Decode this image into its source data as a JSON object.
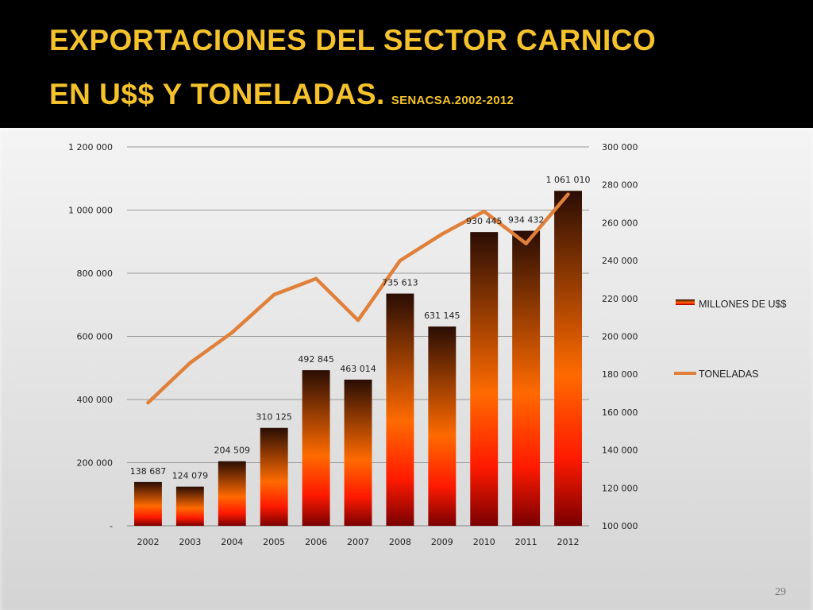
{
  "title": {
    "line1": "EXPORTACIONES DEL SECTOR CARNICO",
    "line2": "EN U$$ Y TONELADAS.",
    "source": "SENACSA.2002-2012"
  },
  "page_number": "29",
  "colors": {
    "title": "#f5c22c",
    "line": "#e0803a",
    "bar_top": "#2a0d04",
    "bar_mid": "#ff6a00",
    "bar_bottom": "#7a0000"
  },
  "chart_data": {
    "type": "bar",
    "categories": [
      "2002",
      "2003",
      "2004",
      "2005",
      "2006",
      "2007",
      "2008",
      "2009",
      "2010",
      "2011",
      "2012"
    ],
    "series": [
      {
        "name": "MILLONES DE U$$",
        "type": "bar",
        "axis": "left",
        "values": [
          138687,
          124079,
          204509,
          310125,
          492845,
          463014,
          735613,
          631145,
          930445,
          934432,
          1061010
        ],
        "labels": [
          "138 687",
          "124 079",
          "204 509",
          "310 125",
          "492 845",
          "463 014",
          "735 613",
          "631 145",
          "930 445",
          "934 432",
          "1 061 010"
        ]
      },
      {
        "name": "TONELADAS",
        "type": "line",
        "axis": "right",
        "values": [
          165000,
          186000,
          202000,
          222000,
          230500,
          208500,
          240000,
          254000,
          266000,
          249000,
          275000
        ]
      }
    ],
    "y_left": {
      "min": 0,
      "max": 1200000,
      "ticks": [
        "-",
        "200 000",
        "400 000",
        "600 000",
        "800 000",
        "1 000 000",
        "1 200 000"
      ],
      "tick_values": [
        0,
        200000,
        400000,
        600000,
        800000,
        1000000,
        1200000
      ]
    },
    "y_right": {
      "min": 100000,
      "max": 300000,
      "ticks": [
        "100 000",
        "120 000",
        "140 000",
        "160 000",
        "180 000",
        "200 000",
        "220 000",
        "240 000",
        "260 000",
        "280 000",
        "300 000"
      ],
      "tick_values": [
        100000,
        120000,
        140000,
        160000,
        180000,
        200000,
        220000,
        240000,
        260000,
        280000,
        300000
      ]
    },
    "grid": true,
    "legend_position": "right"
  }
}
